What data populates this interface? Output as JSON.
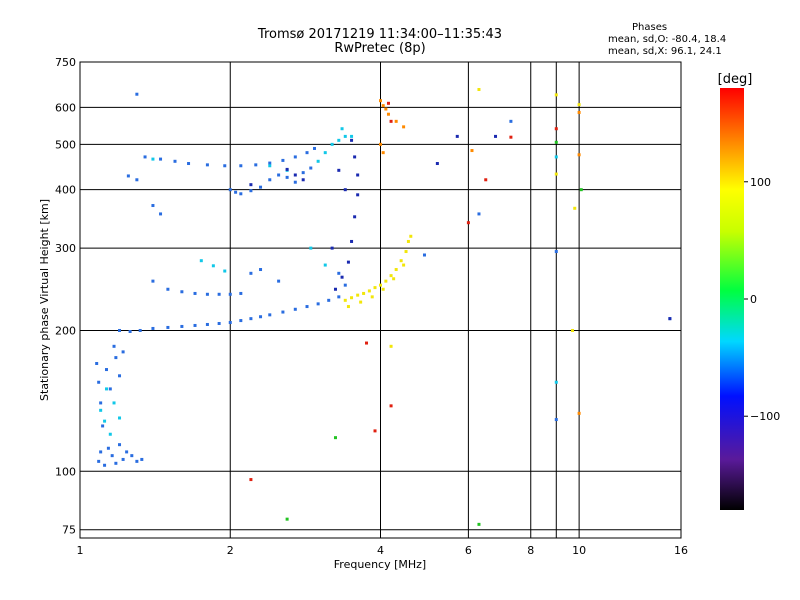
{
  "chart_data": {
    "type": "scatter",
    "title": "Tromsø 20171219 11:34:00–11:35:43",
    "subtitle": "RwPretec (8p)",
    "xlabel": "Frequency [MHz]",
    "ylabel": "Stationary phase Virtual Height [km]",
    "x_scale": "log",
    "y_scale": "log",
    "xlim": [
      1,
      16
    ],
    "ylim": [
      72,
      750
    ],
    "x_ticks": [
      1,
      2,
      4,
      6,
      8,
      9,
      10,
      16
    ],
    "x_tick_labels": [
      "1",
      "2",
      "4",
      "6",
      "8",
      "",
      "10",
      "16"
    ],
    "y_ticks": [
      75,
      100,
      200,
      300,
      400,
      500,
      600,
      750
    ],
    "y_tick_labels": [
      "75",
      "100",
      "200",
      "300",
      "400",
      "500",
      "600",
      "750"
    ],
    "grid": true,
    "phases": {
      "title": "Phases",
      "o_line": "mean, sd,O: -80.4, 18.4",
      "x_line": "mean, sd,X:  96.1, 24.1"
    },
    "colorbar": {
      "title": "[deg]",
      "range": [
        -180,
        180
      ],
      "ticks": [
        100,
        0,
        -100
      ],
      "tick_labels": [
        "100",
        "0",
        "−100"
      ]
    },
    "series": [
      {
        "color": "#2a6de0",
        "points": [
          [
            1.2,
            200
          ],
          [
            1.26,
            199
          ],
          [
            1.32,
            200
          ],
          [
            1.4,
            202
          ],
          [
            1.5,
            203
          ],
          [
            1.6,
            204
          ],
          [
            1.7,
            205
          ],
          [
            1.8,
            206
          ],
          [
            1.9,
            207
          ],
          [
            2.0,
            208
          ],
          [
            2.1,
            210
          ],
          [
            2.2,
            212
          ],
          [
            2.3,
            214
          ],
          [
            2.4,
            216
          ],
          [
            2.55,
            219
          ],
          [
            2.7,
            222
          ],
          [
            2.85,
            225
          ],
          [
            3.0,
            228
          ],
          [
            3.15,
            232
          ],
          [
            3.3,
            236
          ],
          [
            1.4,
            255
          ],
          [
            1.5,
            245
          ],
          [
            1.6,
            242
          ],
          [
            1.7,
            240
          ],
          [
            1.8,
            239
          ],
          [
            1.9,
            239
          ],
          [
            2.0,
            239
          ],
          [
            2.1,
            240
          ],
          [
            1.35,
            470
          ],
          [
            1.45,
            465
          ],
          [
            1.55,
            460
          ],
          [
            1.65,
            455
          ],
          [
            1.8,
            452
          ],
          [
            1.95,
            450
          ],
          [
            2.1,
            450
          ],
          [
            2.25,
            452
          ],
          [
            2.4,
            456
          ],
          [
            2.55,
            462
          ],
          [
            2.7,
            470
          ],
          [
            2.85,
            480
          ],
          [
            2.95,
            490
          ],
          [
            1.3,
            420
          ],
          [
            1.4,
            370
          ],
          [
            1.45,
            355
          ],
          [
            1.3,
            640
          ],
          [
            1.25,
            428
          ],
          [
            2.0,
            400
          ],
          [
            2.05,
            395
          ],
          [
            2.1,
            392
          ],
          [
            2.2,
            398
          ],
          [
            2.3,
            405
          ],
          [
            2.4,
            420
          ],
          [
            2.5,
            430
          ],
          [
            2.6,
            425
          ],
          [
            2.7,
            415
          ],
          [
            2.8,
            435
          ],
          [
            2.9,
            445
          ],
          [
            1.09,
            105
          ],
          [
            1.1,
            110
          ],
          [
            1.12,
            103
          ],
          [
            1.14,
            112
          ],
          [
            1.16,
            108
          ],
          [
            1.18,
            104
          ],
          [
            1.2,
            114
          ],
          [
            1.22,
            106
          ],
          [
            1.24,
            110
          ],
          [
            1.27,
            108
          ],
          [
            1.3,
            105
          ],
          [
            1.33,
            106
          ],
          [
            1.08,
            170
          ],
          [
            1.09,
            155
          ],
          [
            1.1,
            140
          ],
          [
            1.11,
            125
          ],
          [
            1.13,
            165
          ],
          [
            1.15,
            150
          ],
          [
            1.17,
            185
          ],
          [
            1.18,
            175
          ],
          [
            1.2,
            160
          ],
          [
            1.22,
            180
          ],
          [
            2.2,
            265
          ],
          [
            2.3,
            270
          ],
          [
            2.5,
            255
          ],
          [
            3.3,
            265
          ],
          [
            3.4,
            250
          ],
          [
            4.9,
            290
          ],
          [
            7.3,
            560
          ],
          [
            9.0,
            295
          ],
          [
            15.2,
            212
          ],
          [
            9.0,
            129
          ],
          [
            6.3,
            355
          ]
        ]
      },
      {
        "color": "#11c8e8",
        "points": [
          [
            1.1,
            135
          ],
          [
            1.12,
            128
          ],
          [
            1.15,
            120
          ],
          [
            1.13,
            150
          ],
          [
            1.17,
            140
          ],
          [
            1.2,
            130
          ],
          [
            3.0,
            460
          ],
          [
            3.1,
            480
          ],
          [
            3.2,
            500
          ],
          [
            3.3,
            510
          ],
          [
            3.35,
            540
          ],
          [
            3.4,
            520
          ],
          [
            1.75,
            282
          ],
          [
            1.85,
            275
          ],
          [
            1.95,
            268
          ],
          [
            2.4,
            450
          ],
          [
            2.6,
            440
          ],
          [
            2.9,
            300
          ],
          [
            3.1,
            276
          ],
          [
            3.5,
            520
          ],
          [
            1.4,
            465
          ],
          [
            9.0,
            470
          ],
          [
            9.0,
            155
          ]
        ]
      },
      {
        "color": "#1a2ab0",
        "points": [
          [
            3.5,
            510
          ],
          [
            3.55,
            470
          ],
          [
            3.6,
            430
          ],
          [
            3.6,
            390
          ],
          [
            3.55,
            350
          ],
          [
            3.5,
            310
          ],
          [
            3.45,
            280
          ],
          [
            3.35,
            260
          ],
          [
            3.25,
            245
          ],
          [
            3.2,
            300
          ],
          [
            3.4,
            400
          ],
          [
            3.3,
            440
          ],
          [
            2.6,
            442
          ],
          [
            2.7,
            430
          ],
          [
            2.8,
            420
          ],
          [
            2.2,
            410
          ],
          [
            5.2,
            455
          ],
          [
            5.7,
            520
          ],
          [
            6.8,
            520
          ],
          [
            15.2,
            212
          ]
        ]
      },
      {
        "color": "#f2e60a",
        "points": [
          [
            3.4,
            232
          ],
          [
            3.5,
            235
          ],
          [
            3.6,
            238
          ],
          [
            3.7,
            240
          ],
          [
            3.8,
            243
          ],
          [
            3.9,
            247
          ],
          [
            4.0,
            250
          ],
          [
            4.1,
            255
          ],
          [
            4.2,
            262
          ],
          [
            4.3,
            270
          ],
          [
            4.4,
            282
          ],
          [
            4.5,
            295
          ],
          [
            4.55,
            310
          ],
          [
            4.6,
            318
          ],
          [
            3.45,
            225
          ],
          [
            3.65,
            230
          ],
          [
            3.85,
            236
          ],
          [
            4.05,
            245
          ],
          [
            4.25,
            258
          ],
          [
            4.45,
            276
          ],
          [
            6.3,
            655
          ],
          [
            9.0,
            638
          ],
          [
            9.0,
            432
          ],
          [
            9.7,
            200
          ],
          [
            4.2,
            185
          ],
          [
            9.8,
            365
          ],
          [
            10.0,
            608
          ]
        ]
      },
      {
        "color": "#ff8a00",
        "points": [
          [
            4.0,
            620
          ],
          [
            4.05,
            605
          ],
          [
            4.1,
            595
          ],
          [
            4.15,
            580
          ],
          [
            4.0,
            500
          ],
          [
            4.05,
            480
          ],
          [
            4.3,
            560
          ],
          [
            4.45,
            545
          ],
          [
            6.1,
            485
          ],
          [
            10.0,
            585
          ],
          [
            10.0,
            475
          ],
          [
            10.0,
            133
          ]
        ]
      },
      {
        "color": "#e02010",
        "points": [
          [
            4.15,
            612
          ],
          [
            4.2,
            560
          ],
          [
            6.0,
            340
          ],
          [
            6.5,
            420
          ],
          [
            7.3,
            518
          ],
          [
            9.0,
            540
          ],
          [
            2.2,
            96
          ],
          [
            3.9,
            122
          ],
          [
            4.2,
            138
          ],
          [
            3.75,
            188
          ]
        ]
      },
      {
        "color": "#22c322",
        "points": [
          [
            2.6,
            79
          ],
          [
            3.25,
            118
          ],
          [
            9.0,
            505
          ],
          [
            10.1,
            400
          ],
          [
            6.3,
            77
          ]
        ]
      }
    ]
  }
}
